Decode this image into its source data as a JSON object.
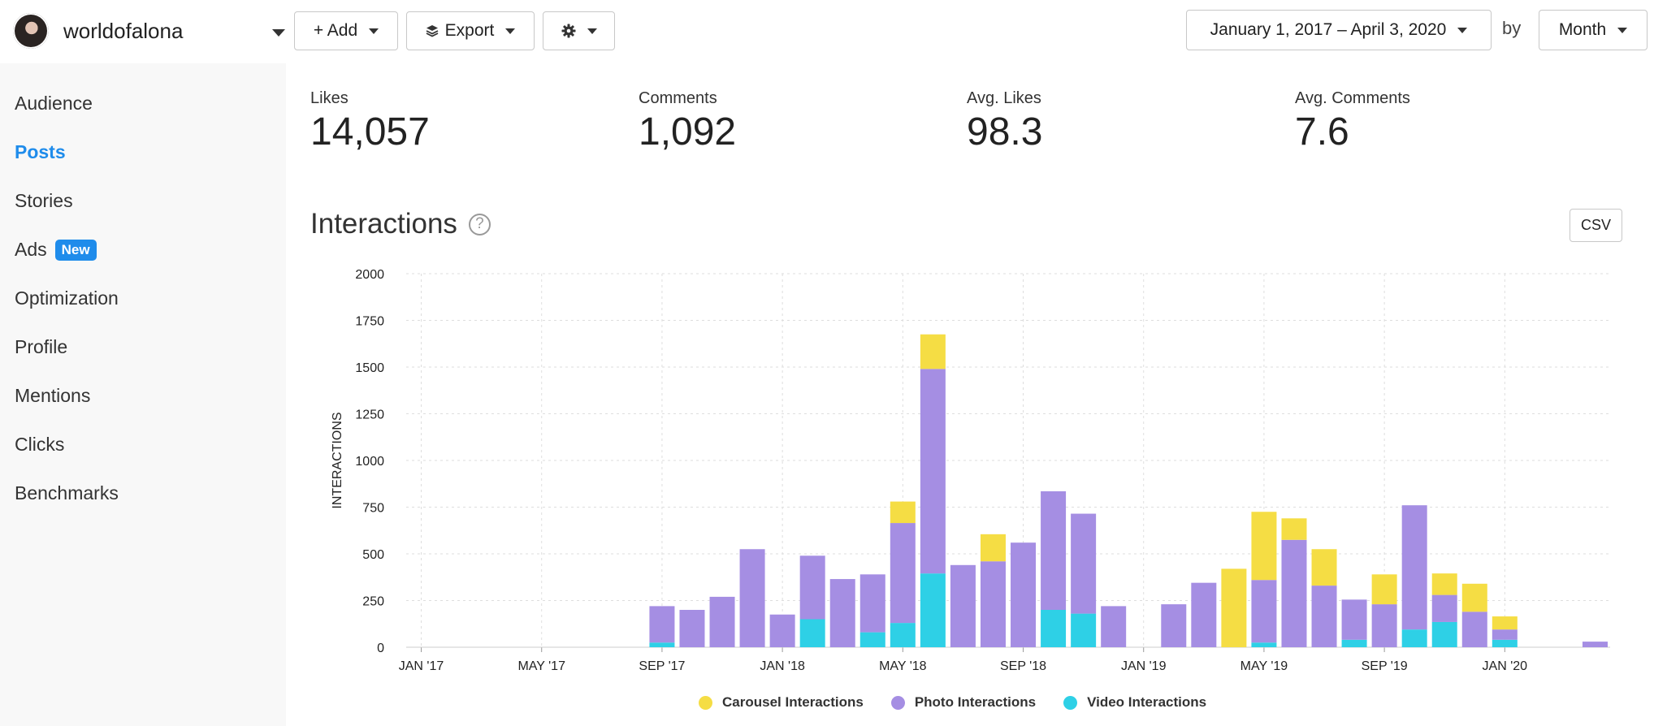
{
  "account": {
    "name": "worldofalona"
  },
  "toolbar": {
    "add_label": "+ Add",
    "export_label": "Export",
    "date_range": "January 1, 2017 – April 3, 2020",
    "by_label": "by",
    "period": "Month"
  },
  "sidebar": {
    "items": [
      {
        "label": "Audience"
      },
      {
        "label": "Posts"
      },
      {
        "label": "Stories"
      },
      {
        "label": "Ads",
        "badge": "New"
      },
      {
        "label": "Optimization"
      },
      {
        "label": "Profile"
      },
      {
        "label": "Mentions"
      },
      {
        "label": "Clicks"
      },
      {
        "label": "Benchmarks"
      }
    ],
    "active": "Posts"
  },
  "stats": [
    {
      "label": "Likes",
      "value": "14,057"
    },
    {
      "label": "Comments",
      "value": "1,092"
    },
    {
      "label": "Avg. Likes",
      "value": "98.3"
    },
    {
      "label": "Avg. Comments",
      "value": "7.6"
    }
  ],
  "section": {
    "title": "Interactions",
    "help": "?",
    "csv_label": "CSV"
  },
  "colors": {
    "carousel": "#f5dd44",
    "photo": "#a58ee3",
    "video": "#2ed0e6",
    "accent": "#1f8ceb"
  },
  "chart_data": {
    "type": "bar",
    "stacked": true,
    "ylabel": "INTERACTIONS",
    "ylim": [
      0,
      2000
    ],
    "yticks": [
      0,
      250,
      500,
      750,
      1000,
      1250,
      1500,
      1750,
      2000
    ],
    "xtick_labels": [
      "JAN '17",
      "MAY '17",
      "SEP '17",
      "JAN '18",
      "MAY '18",
      "SEP '18",
      "JAN '19",
      "MAY '19",
      "SEP '19",
      "JAN '20"
    ],
    "legend": [
      "Carousel Interactions",
      "Photo Interactions",
      "Video Interactions"
    ],
    "legend_position": "bottom",
    "grid": true,
    "categories": [
      "2017-01",
      "2017-02",
      "2017-03",
      "2017-04",
      "2017-05",
      "2017-06",
      "2017-07",
      "2017-08",
      "2017-09",
      "2017-10",
      "2017-11",
      "2017-12",
      "2018-01",
      "2018-02",
      "2018-03",
      "2018-04",
      "2018-05",
      "2018-06",
      "2018-07",
      "2018-08",
      "2018-09",
      "2018-10",
      "2018-11",
      "2018-12",
      "2019-01",
      "2019-02",
      "2019-03",
      "2019-04",
      "2019-05",
      "2019-06",
      "2019-07",
      "2019-08",
      "2019-09",
      "2019-10",
      "2019-11",
      "2019-12",
      "2020-01",
      "2020-02",
      "2020-03",
      "2020-04"
    ],
    "series": [
      {
        "name": "Video Interactions",
        "values": [
          0,
          0,
          0,
          0,
          0,
          0,
          0,
          0,
          25,
          0,
          0,
          0,
          0,
          150,
          0,
          80,
          130,
          395,
          0,
          0,
          0,
          200,
          180,
          0,
          0,
          0,
          0,
          0,
          25,
          0,
          0,
          40,
          0,
          95,
          135,
          0,
          40,
          0,
          0,
          0
        ]
      },
      {
        "name": "Photo Interactions",
        "values": [
          0,
          0,
          0,
          0,
          0,
          0,
          0,
          0,
          195,
          200,
          270,
          525,
          175,
          340,
          365,
          310,
          535,
          1095,
          440,
          460,
          560,
          635,
          535,
          220,
          0,
          230,
          345,
          0,
          335,
          575,
          330,
          215,
          230,
          665,
          145,
          190,
          55,
          0,
          0,
          30
        ]
      },
      {
        "name": "Carousel Interactions",
        "values": [
          0,
          0,
          0,
          0,
          0,
          0,
          0,
          0,
          0,
          0,
          0,
          0,
          0,
          0,
          0,
          0,
          115,
          185,
          0,
          145,
          0,
          0,
          0,
          0,
          0,
          0,
          0,
          420,
          365,
          115,
          195,
          0,
          160,
          0,
          115,
          150,
          70,
          0,
          0,
          0
        ]
      }
    ]
  }
}
